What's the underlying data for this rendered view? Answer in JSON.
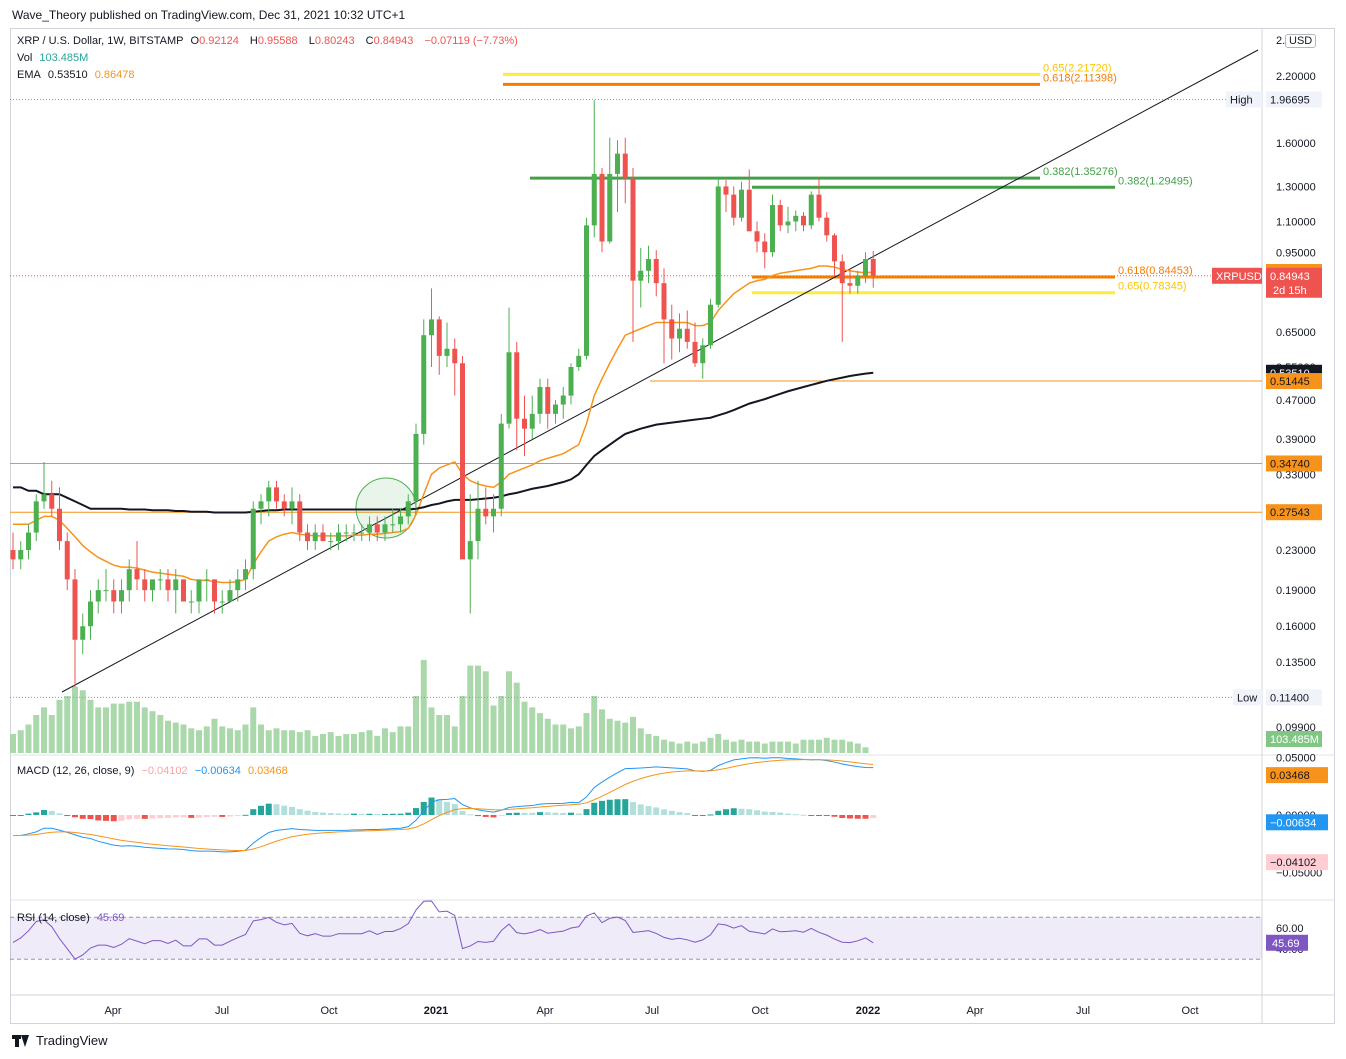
{
  "header": {
    "published": "Wave_Theory published on TradingView.com, Dec 31, 2021 10:32 UTC+1"
  },
  "legend": {
    "symbol": "XRP / U.S. Dollar, 1W, BITSTAMP",
    "o_label": "O",
    "o": "0.92124",
    "h_label": "H",
    "h": "0.95588",
    "l_label": "L",
    "l": "0.80243",
    "c_label": "C",
    "c": "0.84943",
    "change": "−0.07119 (−7.73%)",
    "vol_label": "Vol",
    "vol": "103.485M",
    "ema_label": "EMA",
    "ema1": "0.53510",
    "ema2": "0.86478"
  },
  "macd_legend": {
    "label": "MACD (12, 26, close, 9)",
    "hist": "−0.04102",
    "macd": "−0.00634",
    "signal": "0.03468"
  },
  "rsi_legend": {
    "label": "RSI (14, close)",
    "value": "45.69"
  },
  "currency": "USD",
  "footer": {
    "brand": "TradingView"
  },
  "colors": {
    "up": "#26a69a",
    "candle_up": "#4caf50",
    "down": "#ef5350",
    "ema_fast": "#f7931a",
    "ema_slow": "#131722",
    "fib_green": "#43a047",
    "fib_orange": "#f57c00",
    "fib_yellow": "#ffeb3b"
  },
  "chart_data": {
    "type": "candlestick",
    "price_scale": "log",
    "price_axis_ticks": [
      "2.20000",
      "1.60000",
      "1.30000",
      "1.10000",
      "0.95000",
      "0.65000",
      "0.55000",
      "0.47000",
      "0.39000",
      "0.33000",
      "0.23000",
      "0.19000",
      "0.16000",
      "0.13500",
      "0.09900"
    ],
    "price_axis_tick_values": [
      2.2,
      1.6,
      1.3,
      1.1,
      0.95,
      0.65,
      0.55,
      0.47,
      0.39,
      0.33,
      0.23,
      0.19,
      0.16,
      0.135,
      0.099
    ],
    "time_axis_labels": [
      "Apr",
      "Jul",
      "Oct",
      "2021",
      "Apr",
      "Jul",
      "Oct",
      "2022",
      "Apr",
      "Jul",
      "Oct"
    ],
    "price_labels": [
      {
        "text": "High",
        "value": "1.96695",
        "price": 1.96695,
        "style": "plain"
      },
      {
        "text": "",
        "value": "0.86478",
        "price": 0.86478,
        "style": "orange"
      },
      {
        "text": "XRPUSD",
        "value": "0.84943",
        "price": 0.84943,
        "style": "red",
        "sub": "2d 15h"
      },
      {
        "text": "",
        "value": "0.53510",
        "price": 0.5351,
        "style": "black"
      },
      {
        "text": "",
        "value": "0.51445",
        "price": 0.51445,
        "style": "orange"
      },
      {
        "text": "",
        "value": "0.34740",
        "price": 0.3474,
        "style": "orange"
      },
      {
        "text": "",
        "value": "0.27543",
        "price": 0.27543,
        "style": "orange"
      },
      {
        "text": "Low",
        "value": "0.11400",
        "price": 0.114,
        "style": "plain"
      },
      {
        "text": "",
        "value": "103.485M",
        "price": 0.0935,
        "style": "green"
      }
    ],
    "fib_levels": [
      {
        "label": "0.65(2.21720)",
        "price": 2.2172,
        "color": "#ffeb3b",
        "text_color": "#f9c700"
      },
      {
        "label": "0.618(2.11398)",
        "price": 2.11398,
        "color": "#f57c00",
        "text_color": "#f57c00"
      },
      {
        "label": "0.382(1.35276)",
        "price": 1.35276,
        "color": "#43a047",
        "text_color": "#43a047"
      },
      {
        "label": "0.382(1.29495)",
        "price": 1.29495,
        "color": "#43a047",
        "text_color": "#43a047"
      },
      {
        "label": "0.618(0.84453)",
        "price": 0.84453,
        "color": "#f57c00",
        "text_color": "#f57c00"
      },
      {
        "label": "0.65(0.78345)",
        "price": 0.78345,
        "color": "#ffeb3b",
        "text_color": "#f9c700"
      }
    ],
    "horizontal_levels": [
      0.51445,
      0.3474,
      0.27543
    ],
    "candles_ohlc": [
      [
        0.23,
        0.25,
        0.21,
        0.22
      ],
      [
        0.22,
        0.24,
        0.21,
        0.23
      ],
      [
        0.23,
        0.26,
        0.22,
        0.25
      ],
      [
        0.25,
        0.3,
        0.24,
        0.29
      ],
      [
        0.29,
        0.35,
        0.28,
        0.3
      ],
      [
        0.3,
        0.32,
        0.27,
        0.28
      ],
      [
        0.28,
        0.31,
        0.23,
        0.24
      ],
      [
        0.24,
        0.25,
        0.19,
        0.2
      ],
      [
        0.2,
        0.21,
        0.12,
        0.15
      ],
      [
        0.15,
        0.17,
        0.14,
        0.16
      ],
      [
        0.16,
        0.19,
        0.15,
        0.18
      ],
      [
        0.18,
        0.2,
        0.17,
        0.19
      ],
      [
        0.19,
        0.21,
        0.18,
        0.19
      ],
      [
        0.19,
        0.2,
        0.17,
        0.18
      ],
      [
        0.18,
        0.2,
        0.17,
        0.19
      ],
      [
        0.19,
        0.22,
        0.18,
        0.21
      ],
      [
        0.21,
        0.24,
        0.19,
        0.2
      ],
      [
        0.2,
        0.21,
        0.18,
        0.19
      ],
      [
        0.19,
        0.2,
        0.18,
        0.2
      ],
      [
        0.2,
        0.21,
        0.19,
        0.2
      ],
      [
        0.2,
        0.21,
        0.18,
        0.19
      ],
      [
        0.19,
        0.21,
        0.17,
        0.2
      ],
      [
        0.2,
        0.2,
        0.18,
        0.18
      ],
      [
        0.18,
        0.19,
        0.17,
        0.18
      ],
      [
        0.18,
        0.2,
        0.17,
        0.2
      ],
      [
        0.2,
        0.21,
        0.18,
        0.2
      ],
      [
        0.2,
        0.2,
        0.17,
        0.18
      ],
      [
        0.18,
        0.19,
        0.17,
        0.18
      ],
      [
        0.18,
        0.2,
        0.18,
        0.19
      ],
      [
        0.19,
        0.21,
        0.18,
        0.2
      ],
      [
        0.2,
        0.22,
        0.19,
        0.21
      ],
      [
        0.21,
        0.29,
        0.2,
        0.28
      ],
      [
        0.28,
        0.3,
        0.26,
        0.29
      ],
      [
        0.29,
        0.32,
        0.27,
        0.31
      ],
      [
        0.31,
        0.32,
        0.28,
        0.29
      ],
      [
        0.29,
        0.3,
        0.27,
        0.28
      ],
      [
        0.28,
        0.31,
        0.26,
        0.29
      ],
      [
        0.29,
        0.3,
        0.24,
        0.25
      ],
      [
        0.25,
        0.26,
        0.23,
        0.24
      ],
      [
        0.24,
        0.26,
        0.23,
        0.25
      ],
      [
        0.25,
        0.26,
        0.24,
        0.24
      ],
      [
        0.24,
        0.25,
        0.23,
        0.24
      ],
      [
        0.24,
        0.26,
        0.23,
        0.25
      ],
      [
        0.25,
        0.26,
        0.24,
        0.25
      ],
      [
        0.25,
        0.26,
        0.24,
        0.25
      ],
      [
        0.25,
        0.26,
        0.24,
        0.25
      ],
      [
        0.25,
        0.27,
        0.24,
        0.26
      ],
      [
        0.26,
        0.27,
        0.24,
        0.25
      ],
      [
        0.25,
        0.27,
        0.24,
        0.26
      ],
      [
        0.26,
        0.28,
        0.25,
        0.26
      ],
      [
        0.26,
        0.28,
        0.25,
        0.27
      ],
      [
        0.27,
        0.3,
        0.26,
        0.29
      ],
      [
        0.29,
        0.42,
        0.28,
        0.4
      ],
      [
        0.4,
        0.69,
        0.38,
        0.64
      ],
      [
        0.64,
        0.8,
        0.55,
        0.69
      ],
      [
        0.69,
        0.7,
        0.53,
        0.58
      ],
      [
        0.58,
        0.68,
        0.55,
        0.6
      ],
      [
        0.6,
        0.63,
        0.48,
        0.56
      ],
      [
        0.56,
        0.58,
        0.26,
        0.22
      ],
      [
        0.22,
        0.3,
        0.17,
        0.24
      ],
      [
        0.24,
        0.32,
        0.22,
        0.28
      ],
      [
        0.28,
        0.31,
        0.26,
        0.27
      ],
      [
        0.27,
        0.3,
        0.25,
        0.28
      ],
      [
        0.28,
        0.44,
        0.27,
        0.42
      ],
      [
        0.42,
        0.73,
        0.41,
        0.59
      ],
      [
        0.59,
        0.62,
        0.37,
        0.43
      ],
      [
        0.43,
        0.48,
        0.36,
        0.41
      ],
      [
        0.41,
        0.48,
        0.39,
        0.44
      ],
      [
        0.44,
        0.52,
        0.42,
        0.5
      ],
      [
        0.5,
        0.52,
        0.41,
        0.44
      ],
      [
        0.44,
        0.47,
        0.42,
        0.46
      ],
      [
        0.46,
        0.5,
        0.43,
        0.48
      ],
      [
        0.48,
        0.56,
        0.46,
        0.55
      ],
      [
        0.55,
        0.6,
        0.54,
        0.58
      ],
      [
        0.58,
        1.12,
        0.57,
        1.08
      ],
      [
        1.08,
        1.96,
        1.02,
        1.38
      ],
      [
        1.38,
        1.42,
        0.95,
        1.0
      ],
      [
        1.0,
        1.64,
        0.99,
        1.38
      ],
      [
        1.38,
        1.62,
        1.15,
        1.52
      ],
      [
        1.52,
        1.64,
        1.2,
        1.35
      ],
      [
        1.35,
        1.42,
        0.62,
        0.83
      ],
      [
        0.83,
        0.97,
        0.73,
        0.87
      ],
      [
        0.87,
        0.98,
        0.82,
        0.92
      ],
      [
        0.92,
        0.96,
        0.77,
        0.82
      ],
      [
        0.82,
        0.88,
        0.56,
        0.69
      ],
      [
        0.69,
        0.74,
        0.57,
        0.63
      ],
      [
        0.63,
        0.71,
        0.59,
        0.66
      ],
      [
        0.66,
        0.72,
        0.6,
        0.62
      ],
      [
        0.62,
        0.68,
        0.55,
        0.56
      ],
      [
        0.56,
        0.63,
        0.52,
        0.61
      ],
      [
        0.61,
        0.76,
        0.6,
        0.74
      ],
      [
        0.74,
        1.35,
        0.73,
        1.3
      ],
      [
        1.3,
        1.34,
        1.15,
        1.25
      ],
      [
        1.25,
        1.3,
        1.08,
        1.12
      ],
      [
        1.12,
        1.33,
        1.1,
        1.28
      ],
      [
        1.28,
        1.41,
        1.05,
        1.05
      ],
      [
        1.05,
        1.1,
        0.95,
        1.0
      ],
      [
        1.0,
        1.04,
        0.88,
        0.95
      ],
      [
        0.95,
        1.25,
        0.93,
        1.19
      ],
      [
        1.19,
        1.22,
        1.05,
        1.08
      ],
      [
        1.08,
        1.18,
        1.04,
        1.1
      ],
      [
        1.1,
        1.16,
        1.05,
        1.13
      ],
      [
        1.13,
        1.15,
        1.05,
        1.08
      ],
      [
        1.08,
        1.27,
        1.06,
        1.25
      ],
      [
        1.25,
        1.35,
        1.1,
        1.12
      ],
      [
        1.12,
        1.15,
        1.0,
        1.03
      ],
      [
        1.03,
        1.04,
        0.85,
        0.91
      ],
      [
        0.91,
        0.94,
        0.62,
        0.82
      ],
      [
        0.82,
        0.88,
        0.78,
        0.81
      ],
      [
        0.81,
        0.87,
        0.78,
        0.85
      ],
      [
        0.85,
        0.95,
        0.82,
        0.92
      ],
      [
        0.92,
        0.95588,
        0.80243,
        0.84943
      ]
    ],
    "ema_fast": [
      0.26,
      0.26,
      0.26,
      0.265,
      0.27,
      0.27,
      0.265,
      0.255,
      0.245,
      0.235,
      0.228,
      0.222,
      0.218,
      0.214,
      0.212,
      0.212,
      0.211,
      0.209,
      0.207,
      0.206,
      0.205,
      0.204,
      0.203,
      0.2,
      0.199,
      0.199,
      0.198,
      0.197,
      0.197,
      0.198,
      0.2,
      0.215,
      0.228,
      0.24,
      0.245,
      0.248,
      0.25,
      0.248,
      0.247,
      0.246,
      0.246,
      0.246,
      0.246,
      0.246,
      0.247,
      0.247,
      0.248,
      0.248,
      0.249,
      0.25,
      0.251,
      0.255,
      0.272,
      0.3,
      0.33,
      0.34,
      0.345,
      0.35,
      0.33,
      0.32,
      0.315,
      0.312,
      0.31,
      0.318,
      0.33,
      0.335,
      0.34,
      0.345,
      0.352,
      0.356,
      0.36,
      0.364,
      0.372,
      0.38,
      0.42,
      0.48,
      0.52,
      0.56,
      0.6,
      0.64,
      0.65,
      0.66,
      0.67,
      0.68,
      0.68,
      0.68,
      0.68,
      0.68,
      0.67,
      0.67,
      0.68,
      0.72,
      0.75,
      0.78,
      0.8,
      0.82,
      0.83,
      0.835,
      0.85,
      0.86,
      0.865,
      0.87,
      0.875,
      0.88,
      0.89,
      0.89,
      0.885,
      0.875,
      0.87,
      0.865,
      0.862,
      0.86478
    ],
    "ema_slow": [
      0.31,
      0.31,
      0.305,
      0.305,
      0.3,
      0.3,
      0.3,
      0.295,
      0.29,
      0.285,
      0.28,
      0.28,
      0.28,
      0.28,
      0.28,
      0.279,
      0.279,
      0.279,
      0.278,
      0.278,
      0.278,
      0.277,
      0.277,
      0.276,
      0.276,
      0.276,
      0.275,
      0.275,
      0.275,
      0.275,
      0.275,
      0.276,
      0.277,
      0.278,
      0.278,
      0.279,
      0.279,
      0.279,
      0.279,
      0.279,
      0.279,
      0.279,
      0.279,
      0.279,
      0.279,
      0.279,
      0.279,
      0.279,
      0.279,
      0.279,
      0.279,
      0.279,
      0.28,
      0.282,
      0.285,
      0.287,
      0.29,
      0.292,
      0.292,
      0.292,
      0.293,
      0.294,
      0.295,
      0.297,
      0.3,
      0.302,
      0.305,
      0.308,
      0.31,
      0.312,
      0.315,
      0.318,
      0.322,
      0.33,
      0.345,
      0.36,
      0.37,
      0.38,
      0.39,
      0.4,
      0.405,
      0.41,
      0.414,
      0.418,
      0.42,
      0.422,
      0.424,
      0.426,
      0.428,
      0.43,
      0.432,
      0.437,
      0.442,
      0.448,
      0.455,
      0.462,
      0.467,
      0.472,
      0.478,
      0.484,
      0.49,
      0.495,
      0.5,
      0.505,
      0.51,
      0.515,
      0.519,
      0.523,
      0.527,
      0.53,
      0.533,
      0.5351
    ],
    "volume_rel": [
      0.1,
      0.12,
      0.15,
      0.2,
      0.24,
      0.2,
      0.28,
      0.3,
      0.35,
      0.33,
      0.28,
      0.24,
      0.24,
      0.26,
      0.26,
      0.27,
      0.27,
      0.24,
      0.22,
      0.2,
      0.17,
      0.16,
      0.15,
      0.13,
      0.12,
      0.14,
      0.18,
      0.14,
      0.13,
      0.12,
      0.15,
      0.24,
      0.15,
      0.12,
      0.13,
      0.12,
      0.12,
      0.11,
      0.12,
      0.09,
      0.1,
      0.11,
      0.09,
      0.1,
      0.1,
      0.11,
      0.12,
      0.09,
      0.13,
      0.11,
      0.14,
      0.14,
      0.3,
      0.49,
      0.24,
      0.2,
      0.2,
      0.14,
      0.3,
      0.46,
      0.46,
      0.43,
      0.25,
      0.3,
      0.43,
      0.37,
      0.27,
      0.24,
      0.21,
      0.18,
      0.15,
      0.15,
      0.13,
      0.14,
      0.21,
      0.3,
      0.23,
      0.18,
      0.17,
      0.16,
      0.19,
      0.13,
      0.1,
      0.09,
      0.07,
      0.06,
      0.05,
      0.06,
      0.05,
      0.06,
      0.08,
      0.1,
      0.07,
      0.06,
      0.07,
      0.06,
      0.06,
      0.05,
      0.06,
      0.06,
      0.06,
      0.05,
      0.07,
      0.07,
      0.07,
      0.08,
      0.07,
      0.07,
      0.06,
      0.05,
      0.03
    ],
    "macd_ticks": [
      "0.05000",
      "0.00000",
      "−0.05000"
    ],
    "macd_tick_values": [
      0.05,
      0.0,
      -0.05
    ],
    "macd_labels": [
      {
        "value": "0.03468",
        "v": 0.03468,
        "style": "orange"
      },
      {
        "value": "−0.00634",
        "v": -0.00634,
        "style": "blue"
      },
      {
        "value": "−0.04102",
        "v": -0.04102,
        "style": "pink"
      }
    ],
    "rsi_ticks": [
      "60.00",
      "40.00"
    ],
    "rsi_tick_values": [
      60,
      40
    ],
    "rsi_upper": 70,
    "rsi_lower": 30
  }
}
